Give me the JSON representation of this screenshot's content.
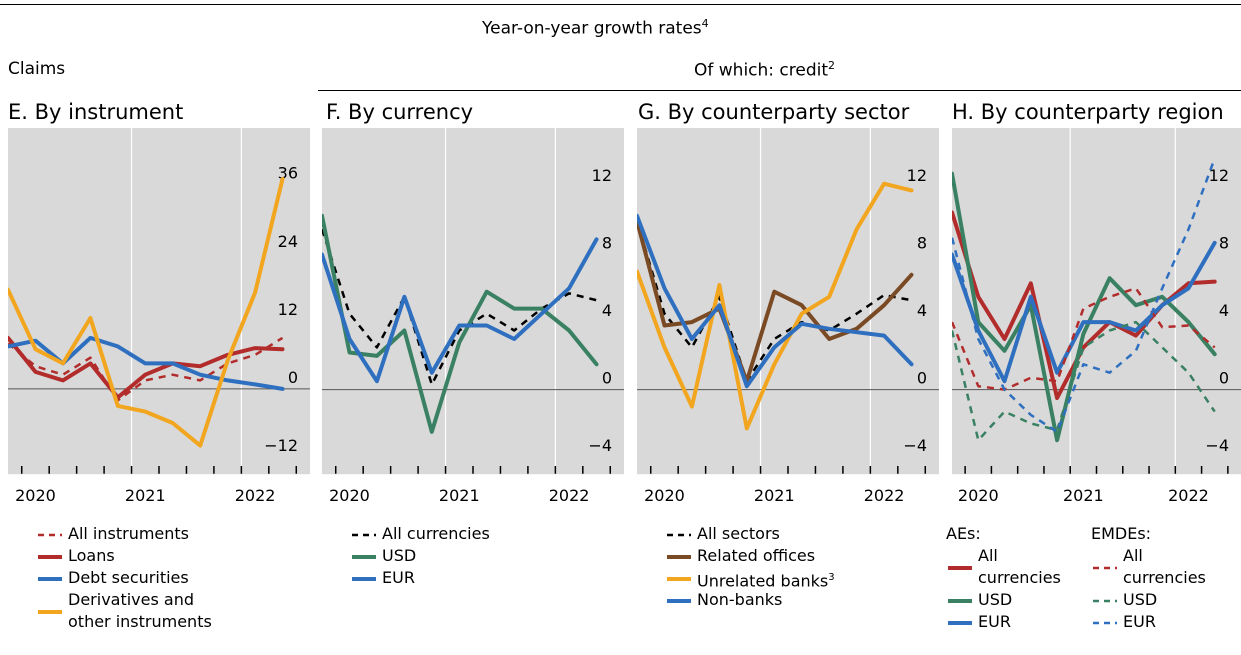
{
  "header": {
    "main": "Year-on-year growth rates",
    "main_sup": "4",
    "left": "Claims",
    "right": "Of which: credit",
    "right_sup": "2"
  },
  "colors": {
    "red": "#b22c2c",
    "blue": "#2f6fbf",
    "orange": "#f2a61f",
    "green": "#3a8063",
    "brown": "#7a4a24",
    "black": "#000000",
    "panel_bg": "#d9d9d9"
  },
  "chart_data": [
    {
      "id": "E",
      "type": "line",
      "title": "E. By instrument",
      "xlabel": "",
      "ylabel": "",
      "x_ticks": [
        "2020",
        "2021",
        "2022"
      ],
      "xlim": [
        2019.75,
        2022.5
      ],
      "ylim": [
        -15,
        46
      ],
      "y_ticks": [
        "36",
        "24",
        "12",
        "0",
        "−12"
      ],
      "y_tick_values": [
        36,
        24,
        12,
        0,
        -12
      ],
      "grid": true,
      "legend": "below",
      "series": [
        {
          "name": "All instruments",
          "color": "red",
          "dash": true,
          "x": [
            2019.75,
            2020.0,
            2020.25,
            2020.5,
            2020.75,
            2021.0,
            2021.25,
            2021.5,
            2021.75,
            2022.0,
            2022.25
          ],
          "values": [
            8,
            4,
            2.5,
            5.5,
            -2,
            1.5,
            2.5,
            1.5,
            4.5,
            6,
            9
          ]
        },
        {
          "name": "Loans",
          "color": "red",
          "dash": false,
          "x": [
            2019.75,
            2020.0,
            2020.25,
            2020.5,
            2020.75,
            2021.0,
            2021.25,
            2021.5,
            2021.75,
            2022.0,
            2022.25
          ],
          "values": [
            9,
            3,
            1.5,
            4.5,
            -1.5,
            2.5,
            4.5,
            4,
            6,
            7.2,
            7
          ]
        },
        {
          "name": "Debt securities",
          "color": "blue",
          "dash": false,
          "x": [
            2019.75,
            2020.0,
            2020.25,
            2020.5,
            2020.75,
            2021.0,
            2021.25,
            2021.5,
            2021.75,
            2022.0,
            2022.25
          ],
          "values": [
            7.5,
            8.5,
            4.5,
            9,
            7.5,
            4.5,
            4.5,
            2.5,
            1.5,
            0.8,
            0
          ]
        },
        {
          "name": "Derivatives and other instruments",
          "color": "orange",
          "dash": false,
          "x": [
            2019.75,
            2020.0,
            2020.25,
            2020.5,
            2020.75,
            2021.0,
            2021.25,
            2021.5,
            2021.75,
            2022.0,
            2022.25
          ],
          "values": [
            17.5,
            7,
            4.5,
            12.5,
            -3,
            -4,
            -6,
            -10,
            5,
            17,
            37
          ]
        }
      ]
    },
    {
      "id": "F",
      "type": "line",
      "title": "F. By currency",
      "xlabel": "",
      "ylabel": "",
      "x_ticks": [
        "2020",
        "2021",
        "2022"
      ],
      "xlim": [
        2019.75,
        2022.5
      ],
      "ylim": [
        -5,
        15.5
      ],
      "y_ticks": [
        "12",
        "8",
        "4",
        "0",
        "−4"
      ],
      "y_tick_values": [
        12,
        8,
        4,
        0,
        -4
      ],
      "grid": true,
      "legend": "below",
      "series": [
        {
          "name": "All currencies",
          "color": "black",
          "dash": true,
          "x": [
            2019.75,
            2020.0,
            2020.25,
            2020.5,
            2020.75,
            2021.0,
            2021.25,
            2021.5,
            2021.75,
            2022.0,
            2022.25
          ],
          "values": [
            9.5,
            4.5,
            2.5,
            5.5,
            0.3,
            3.5,
            4.5,
            3.5,
            4.8,
            5.7,
            5.3
          ]
        },
        {
          "name": "USD",
          "color": "green",
          "dash": false,
          "x": [
            2019.75,
            2020.0,
            2020.25,
            2020.5,
            2020.75,
            2021.0,
            2021.25,
            2021.5,
            2021.75,
            2022.0,
            2022.25
          ],
          "values": [
            10.3,
            2.2,
            2,
            3.5,
            -2.5,
            2.8,
            5.8,
            4.8,
            4.8,
            3.5,
            1.5
          ]
        },
        {
          "name": "EUR",
          "color": "blue",
          "dash": false,
          "x": [
            2019.75,
            2020.0,
            2020.25,
            2020.5,
            2020.75,
            2021.0,
            2021.25,
            2021.5,
            2021.75,
            2022.0,
            2022.25
          ],
          "values": [
            8,
            3,
            0.5,
            5.5,
            1,
            3.8,
            3.8,
            3,
            4.5,
            6,
            8.9
          ]
        }
      ]
    },
    {
      "id": "G",
      "type": "line",
      "title": "G. By counterparty sector",
      "xlabel": "",
      "ylabel": "",
      "x_ticks": [
        "2020",
        "2021",
        "2022"
      ],
      "xlim": [
        2019.75,
        2022.5
      ],
      "ylim": [
        -5,
        15.5
      ],
      "y_ticks": [
        "12",
        "8",
        "4",
        "0",
        "−4"
      ],
      "y_tick_values": [
        12,
        8,
        4,
        0,
        -4
      ],
      "grid": true,
      "legend": "below",
      "series": [
        {
          "name": "All sectors",
          "color": "black",
          "dash": true,
          "x": [
            2019.75,
            2020.0,
            2020.25,
            2020.5,
            2020.75,
            2021.0,
            2021.25,
            2021.5,
            2021.75,
            2022.0,
            2022.25
          ],
          "values": [
            10,
            4.5,
            2.5,
            5.5,
            0.5,
            3,
            4,
            3.5,
            4.5,
            5.6,
            5.3
          ]
        },
        {
          "name": "Related offices",
          "color": "brown",
          "dash": false,
          "x": [
            2019.75,
            2020.0,
            2020.25,
            2020.5,
            2020.75,
            2021.0,
            2021.25,
            2021.5,
            2021.75,
            2022.0,
            2022.25
          ],
          "values": [
            10,
            3.8,
            4,
            4.8,
            0.5,
            5.8,
            5,
            3,
            3.6,
            5,
            6.8
          ]
        },
        {
          "name": "Unrelated banks",
          "name_sup": "3",
          "color": "orange",
          "dash": false,
          "x": [
            2019.75,
            2020.0,
            2020.25,
            2020.5,
            2020.75,
            2021.0,
            2021.25,
            2021.5,
            2021.75,
            2022.0,
            2022.25
          ],
          "values": [
            7,
            2.5,
            -1,
            6.2,
            -2.3,
            1.5,
            4.5,
            5.5,
            9.5,
            12.2,
            11.8
          ]
        },
        {
          "name": "Non-banks",
          "color": "blue",
          "dash": false,
          "x": [
            2019.75,
            2020.0,
            2020.25,
            2020.5,
            2020.75,
            2021.0,
            2021.25,
            2021.5,
            2021.75,
            2022.0,
            2022.25
          ],
          "values": [
            10.3,
            6,
            3,
            5,
            0.2,
            2.5,
            3.9,
            3.6,
            3.4,
            3.2,
            1.5
          ]
        }
      ]
    },
    {
      "id": "H",
      "type": "line",
      "title": "H. By counterparty region",
      "xlabel": "",
      "ylabel": "",
      "x_ticks": [
        "2020",
        "2021",
        "2022"
      ],
      "xlim": [
        2019.75,
        2022.5
      ],
      "ylim": [
        -5,
        15.5
      ],
      "y_ticks": [
        "12",
        "8",
        "4",
        "0",
        "−4"
      ],
      "y_tick_values": [
        12,
        8,
        4,
        0,
        -4
      ],
      "grid": true,
      "legend": "below",
      "legend_headers": [
        "AEs:",
        "EMDEs:"
      ],
      "series": [
        {
          "name": "All currencies",
          "group": "AEs",
          "color": "red",
          "dash": false,
          "x": [
            2019.75,
            2020.0,
            2020.25,
            2020.5,
            2020.75,
            2021.0,
            2021.25,
            2021.5,
            2021.75,
            2022.0,
            2022.25
          ],
          "values": [
            10.5,
            5.5,
            3,
            6.3,
            -0.5,
            2.5,
            4,
            3.2,
            5,
            6.3,
            6.4
          ]
        },
        {
          "name": "USD",
          "group": "AEs",
          "color": "green",
          "dash": false,
          "x": [
            2019.75,
            2020.0,
            2020.25,
            2020.5,
            2020.75,
            2021.0,
            2021.25,
            2021.5,
            2021.75,
            2022.0,
            2022.25
          ],
          "values": [
            12.8,
            4,
            2.3,
            5,
            -3,
            3.3,
            6.6,
            5,
            5.5,
            4,
            2.1
          ]
        },
        {
          "name": "EUR",
          "group": "AEs",
          "color": "blue",
          "dash": false,
          "x": [
            2019.75,
            2020.0,
            2020.25,
            2020.5,
            2020.75,
            2021.0,
            2021.25,
            2021.5,
            2021.75,
            2022.0,
            2022.25
          ],
          "values": [
            8,
            3.5,
            0.5,
            5.5,
            1,
            4,
            4,
            3.5,
            5,
            6,
            8.7
          ]
        },
        {
          "name": "All currencies",
          "group": "EMDEs",
          "color": "red",
          "dash": true,
          "x": [
            2019.75,
            2020.0,
            2020.25,
            2020.5,
            2020.75,
            2021.0,
            2021.25,
            2021.5,
            2021.75,
            2022.0,
            2022.25
          ],
          "values": [
            4,
            0.2,
            0,
            0.7,
            0.5,
            4.8,
            5.5,
            6,
            3.7,
            3.8,
            2.5
          ]
        },
        {
          "name": "USD",
          "group": "EMDEs",
          "color": "green",
          "dash": true,
          "x": [
            2019.75,
            2020.0,
            2020.25,
            2020.5,
            2020.75,
            2021.0,
            2021.25,
            2021.5,
            2021.75,
            2022.0,
            2022.25
          ],
          "values": [
            3.5,
            -3,
            -1.3,
            -2,
            -2.4,
            2.5,
            3.5,
            4,
            2.5,
            1,
            -1.3
          ]
        },
        {
          "name": "EUR",
          "group": "EMDEs",
          "color": "blue",
          "dash": true,
          "x": [
            2019.75,
            2020.0,
            2020.25,
            2020.5,
            2020.75,
            2021.0,
            2021.25,
            2021.5,
            2021.75,
            2022.0,
            2022.25
          ],
          "values": [
            9,
            3,
            0,
            -1.5,
            -2.5,
            1.5,
            1,
            2.3,
            6,
            9.5,
            13.7
          ]
        }
      ]
    }
  ]
}
